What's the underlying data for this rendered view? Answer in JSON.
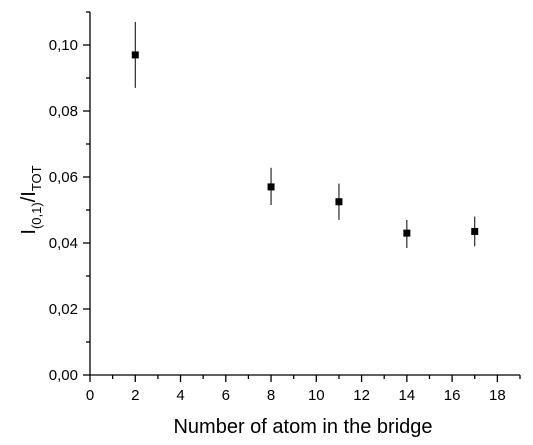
{
  "chart_data": {
    "type": "scatter",
    "title": "",
    "xlabel": "Number of atom in the bridge",
    "ylabel": {
      "base1": "I",
      "sub1": "(0,1)",
      "sep": "/I",
      "sub2": "TOT"
    },
    "xlim": [
      0,
      19
    ],
    "ylim": [
      0.0,
      0.11
    ],
    "x_ticks": [
      {
        "value": 0,
        "label": "0"
      },
      {
        "value": 2,
        "label": "2"
      },
      {
        "value": 4,
        "label": "4"
      },
      {
        "value": 6,
        "label": "6"
      },
      {
        "value": 8,
        "label": "8"
      },
      {
        "value": 10,
        "label": "10"
      },
      {
        "value": 12,
        "label": "12"
      },
      {
        "value": 14,
        "label": "14"
      },
      {
        "value": 16,
        "label": "16"
      },
      {
        "value": 18,
        "label": "18"
      }
    ],
    "y_ticks": [
      {
        "value": 0.0,
        "label": "0,00"
      },
      {
        "value": 0.02,
        "label": "0,02"
      },
      {
        "value": 0.04,
        "label": "0,04"
      },
      {
        "value": 0.06,
        "label": "0,06"
      },
      {
        "value": 0.08,
        "label": "0,08"
      },
      {
        "value": 0.1,
        "label": "0,10"
      }
    ],
    "grid": false,
    "marker": "square",
    "color": "#000000",
    "series": [
      {
        "points": [
          {
            "x": 2,
            "y": 0.097,
            "err_low": 0.087,
            "err_high": 0.107
          },
          {
            "x": 8,
            "y": 0.057,
            "err_low": 0.0515,
            "err_high": 0.0628
          },
          {
            "x": 11,
            "y": 0.0525,
            "err_low": 0.047,
            "err_high": 0.058
          },
          {
            "x": 14,
            "y": 0.043,
            "err_low": 0.0385,
            "err_high": 0.047
          },
          {
            "x": 17,
            "y": 0.0435,
            "err_low": 0.039,
            "err_high": 0.048
          }
        ]
      }
    ]
  }
}
